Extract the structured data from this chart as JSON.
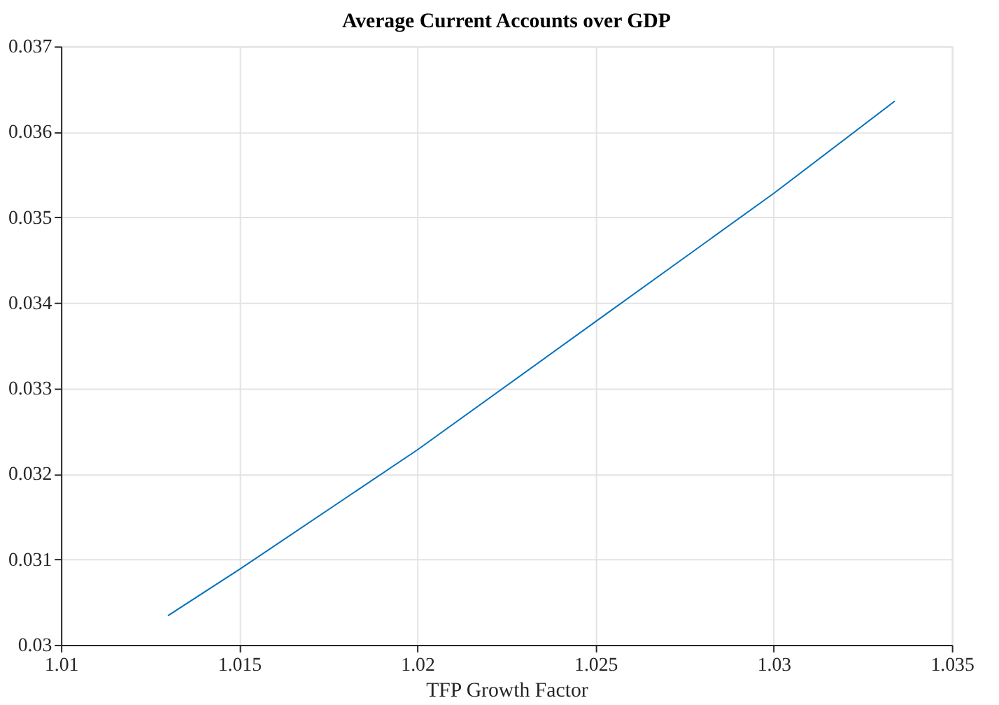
{
  "chart_data": {
    "type": "line",
    "title": "Average Current Accounts over GDP",
    "xlabel": "TFP Growth Factor",
    "x": [
      1.013,
      1.015,
      1.02,
      1.025,
      1.03,
      1.0334
    ],
    "series": [
      {
        "color": "#0072bd",
        "values": [
          0.03034,
          0.03088,
          0.03228,
          0.03378,
          0.03528,
          0.03636
        ]
      }
    ],
    "xlim": [
      1.01,
      1.035
    ],
    "xticks": [
      1.01,
      1.015,
      1.02,
      1.025,
      1.03,
      1.035
    ],
    "ylim": [
      0.03,
      0.037
    ],
    "yticks": [
      0.03,
      0.031,
      0.032,
      0.033,
      0.034,
      0.035,
      0.036,
      0.037
    ],
    "grid": true,
    "marker": "none",
    "line_style": "solid"
  }
}
